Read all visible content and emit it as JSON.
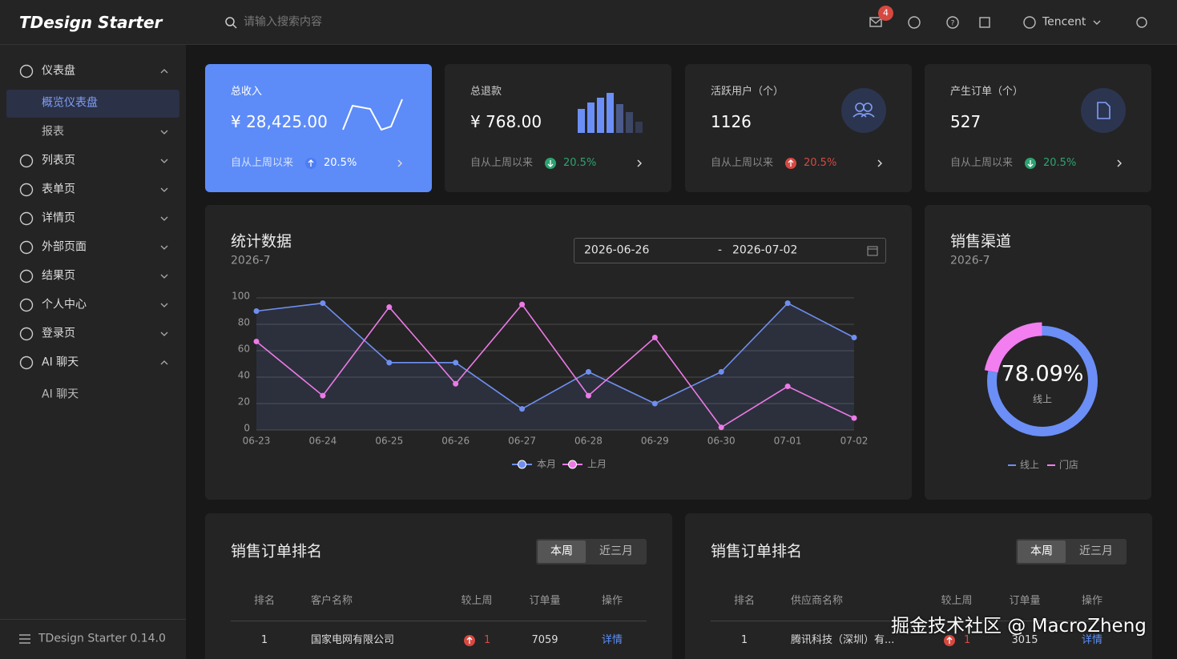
{
  "header": {
    "logo": "TDesign Starter",
    "search_placeholder": "请输入搜索内容",
    "badge": 4,
    "user": "Tencent"
  },
  "sidebar": {
    "menu": [
      "仪表盘",
      "概览仪表盘",
      "报表",
      "列表页",
      "表单页",
      "详情页",
      "外部页面",
      "结果页",
      "个人中心",
      "登录页",
      "AI 聊天",
      "AI 聊天"
    ],
    "footer": "TDesign Starter 0.14.0"
  },
  "stat_cards": [
    {
      "title": "总收入",
      "value": "¥ 28,425.00",
      "note": "自从上周以来",
      "change": "20.5%"
    },
    {
      "title": "总退款",
      "value": "¥ 768.00",
      "note": "自从上周以来",
      "change": "20.5%"
    },
    {
      "title": "活跃用户（个）",
      "value": 1126,
      "note": "自从上周以来",
      "change": "20.5%"
    },
    {
      "title": "产生订单（个）",
      "value": 527,
      "note": "自从上周以来",
      "change": "20.5%"
    }
  ],
  "stats_panel": {
    "title": "统计数据",
    "subtitle": "2026-7",
    "date_start": "2026-06-26",
    "date_separator": "-",
    "date_end": "2026-07-02",
    "chart_data": {
      "type": "line",
      "categories": [
        "06-23",
        "06-24",
        "06-25",
        "06-26",
        "06-27",
        "06-28",
        "06-29",
        "06-30",
        "07-01",
        "07-02"
      ],
      "series": [
        {
          "name": "本月",
          "color": "#6f8ff0",
          "values": [
            90,
            96,
            51,
            51,
            16,
            44,
            20,
            44,
            96,
            70
          ]
        },
        {
          "name": "上月",
          "color": "#ec7ae6",
          "values": [
            67,
            26,
            93,
            35,
            95,
            26,
            70,
            2,
            33,
            9
          ]
        }
      ],
      "ylim": [
        0,
        100
      ],
      "yticks": [
        0,
        20,
        40,
        60,
        80,
        100
      ],
      "grid": true
    }
  },
  "channel_panel": {
    "title": "销售渠道",
    "subtitle": "2026-7",
    "chart_data": {
      "type": "pie",
      "series": [
        {
          "name": "线上",
          "color": "#6b8ff7",
          "value": 78.09,
          "value_label": "78.09%"
        },
        {
          "name": "门店",
          "color": "#f27ef0",
          "value": 21.91
        }
      ]
    }
  },
  "tables": [
    {
      "title": "销售订单排名",
      "tabs": [
        "本周",
        "近三月"
      ],
      "columns": [
        "排名",
        "客户名称",
        "较上周",
        "订单量",
        "操作"
      ],
      "rows": [
        [
          "1",
          "国家电网有限公司",
          "1",
          "7059",
          "详情"
        ]
      ]
    },
    {
      "title": "销售订单排名",
      "tabs": [
        "本周",
        "近三月"
      ],
      "columns": [
        "排名",
        "供应商名称",
        "较上周",
        "订单量",
        "操作"
      ],
      "rows": [
        [
          "1",
          "腾讯科技（深圳）有...",
          "1",
          "3015",
          "详情"
        ]
      ]
    }
  ],
  "watermark": "掘金技术社区 @ MacroZheng"
}
